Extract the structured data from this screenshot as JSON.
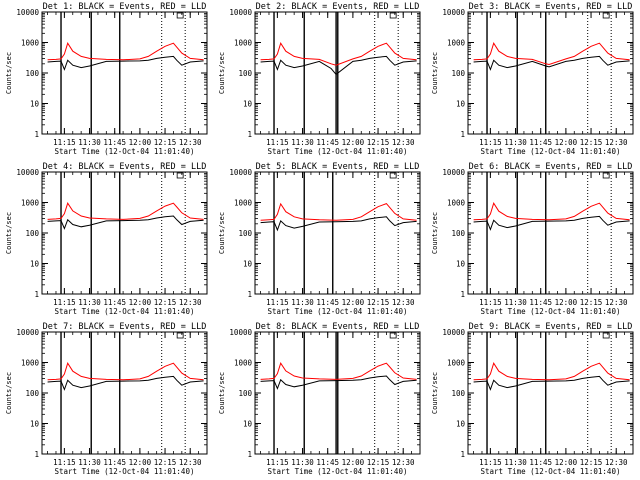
{
  "colors": {
    "events": "#000000",
    "lld": "#ff0000",
    "background": "#ffffff"
  },
  "figure": {
    "xlabel": "Start Time (12-Oct-04 11:01:40)",
    "ylabel": "Counts/sec",
    "ylim": [
      1,
      10000
    ],
    "yscale": "log",
    "xrange_utc": [
      "11:01:40",
      "12:40:00"
    ],
    "xticks": [
      "11:15",
      "11:30",
      "11:45",
      "12:00",
      "12:15",
      "12:30"
    ],
    "yticks": [
      "1",
      "10",
      "100",
      "1000",
      "10000"
    ]
  },
  "chart_data": [
    {
      "type": "line",
      "title": "Det 1: BLACK = Events, RED = LLD",
      "x": [
        "11:05",
        "11:10",
        "11:13",
        "11:15",
        "11:17",
        "11:20",
        "11:25",
        "11:30",
        "11:40",
        "11:50",
        "12:00",
        "12:05",
        "12:10",
        "12:15",
        "12:20",
        "12:22",
        "12:25",
        "12:30",
        "12:38"
      ],
      "series": [
        {
          "name": "BLACK = Events",
          "values": [
            230,
            240,
            245,
            130,
            260,
            180,
            150,
            170,
            240,
            245,
            250,
            260,
            300,
            330,
            350,
            260,
            180,
            230,
            250
          ]
        },
        {
          "name": "RED = LLD",
          "values": [
            270,
            280,
            290,
            420,
            950,
            520,
            350,
            300,
            280,
            270,
            290,
            350,
            520,
            750,
            950,
            700,
            450,
            300,
            270
          ]
        }
      ],
      "vlines_solid": [
        "11:13",
        "11:31",
        "11:48"
      ],
      "vlines_dotted": [
        "12:13",
        "12:27"
      ]
    },
    {
      "type": "line",
      "title": "Det 2: BLACK = Events, RED = LLD",
      "x": [
        "11:05",
        "11:10",
        "11:13",
        "11:15",
        "11:17",
        "11:20",
        "11:25",
        "11:30",
        "11:40",
        "11:47",
        "11:50",
        "12:00",
        "12:05",
        "12:10",
        "12:15",
        "12:20",
        "12:22",
        "12:25",
        "12:30",
        "12:38"
      ],
      "series": [
        {
          "name": "BLACK = Events",
          "values": [
            230,
            240,
            245,
            130,
            260,
            180,
            150,
            170,
            240,
            140,
            90,
            240,
            260,
            300,
            330,
            350,
            260,
            180,
            230,
            250
          ]
        },
        {
          "name": "RED = LLD",
          "values": [
            270,
            280,
            290,
            420,
            950,
            520,
            350,
            300,
            280,
            200,
            180,
            290,
            350,
            520,
            750,
            950,
            700,
            450,
            300,
            270
          ]
        }
      ],
      "vlines_solid": [
        "11:13",
        "11:31",
        "11:50",
        "11:51"
      ],
      "vlines_dotted": [
        "12:13",
        "12:27"
      ]
    },
    {
      "type": "line",
      "title": "Det 3: BLACK = Events, RED = LLD",
      "x": [
        "11:05",
        "11:10",
        "11:13",
        "11:15",
        "11:17",
        "11:20",
        "11:25",
        "11:30",
        "11:40",
        "11:48",
        "11:50",
        "12:00",
        "12:05",
        "12:10",
        "12:15",
        "12:20",
        "12:22",
        "12:25",
        "12:30",
        "12:38"
      ],
      "series": [
        {
          "name": "BLACK = Events",
          "values": [
            230,
            240,
            245,
            130,
            260,
            180,
            150,
            170,
            240,
            170,
            160,
            240,
            260,
            300,
            330,
            350,
            260,
            180,
            230,
            250
          ]
        },
        {
          "name": "RED = LLD",
          "values": [
            270,
            280,
            290,
            420,
            950,
            520,
            350,
            300,
            280,
            200,
            190,
            290,
            350,
            520,
            750,
            950,
            700,
            450,
            300,
            270
          ]
        }
      ],
      "vlines_solid": [
        "11:13",
        "11:31",
        "11:48"
      ],
      "vlines_dotted": [
        "12:13",
        "12:27"
      ]
    },
    {
      "type": "line",
      "title": "Det 4: BLACK = Events, RED = LLD",
      "x": [
        "11:05",
        "11:10",
        "11:13",
        "11:15",
        "11:17",
        "11:20",
        "11:25",
        "11:30",
        "11:40",
        "11:50",
        "12:00",
        "12:05",
        "12:10",
        "12:15",
        "12:20",
        "12:22",
        "12:25",
        "12:30",
        "12:38"
      ],
      "series": [
        {
          "name": "BLACK = Events",
          "values": [
            240,
            250,
            255,
            140,
            270,
            190,
            160,
            180,
            250,
            255,
            260,
            270,
            310,
            340,
            360,
            270,
            190,
            240,
            260
          ]
        },
        {
          "name": "RED = LLD",
          "values": [
            280,
            290,
            300,
            430,
            950,
            530,
            360,
            310,
            290,
            280,
            300,
            360,
            530,
            760,
            950,
            710,
            460,
            310,
            280
          ]
        }
      ],
      "vlines_solid": [
        "11:13",
        "11:31",
        "11:48"
      ],
      "vlines_dotted": [
        "12:13",
        "12:27"
      ]
    },
    {
      "type": "line",
      "title": "Det 5: BLACK = Events, RED = LLD",
      "x": [
        "11:05",
        "11:10",
        "11:13",
        "11:15",
        "11:17",
        "11:20",
        "11:25",
        "11:30",
        "11:40",
        "11:50",
        "12:00",
        "12:05",
        "12:10",
        "12:15",
        "12:20",
        "12:22",
        "12:25",
        "12:30",
        "12:38"
      ],
      "series": [
        {
          "name": "BLACK = Events",
          "values": [
            220,
            230,
            235,
            125,
            250,
            175,
            145,
            165,
            230,
            235,
            240,
            250,
            290,
            320,
            340,
            250,
            175,
            220,
            240
          ]
        },
        {
          "name": "RED = LLD",
          "values": [
            260,
            270,
            280,
            410,
            900,
            500,
            340,
            290,
            270,
            260,
            280,
            340,
            500,
            730,
            920,
            680,
            440,
            290,
            260
          ]
        }
      ],
      "vlines_solid": [
        "11:13",
        "11:31",
        "11:48"
      ],
      "vlines_dotted": [
        "12:13",
        "12:27"
      ]
    },
    {
      "type": "line",
      "title": "Det 6: BLACK = Events, RED = LLD",
      "x": [
        "11:05",
        "11:10",
        "11:13",
        "11:15",
        "11:17",
        "11:20",
        "11:25",
        "11:30",
        "11:40",
        "11:50",
        "12:00",
        "12:05",
        "12:10",
        "12:15",
        "12:20",
        "12:22",
        "12:25",
        "12:30",
        "12:38"
      ],
      "series": [
        {
          "name": "BLACK = Events",
          "values": [
            230,
            240,
            245,
            130,
            260,
            180,
            150,
            170,
            240,
            245,
            250,
            260,
            300,
            330,
            350,
            260,
            180,
            230,
            250
          ]
        },
        {
          "name": "RED = LLD",
          "values": [
            270,
            280,
            290,
            420,
            950,
            520,
            350,
            300,
            280,
            270,
            290,
            350,
            520,
            750,
            950,
            700,
            450,
            300,
            270
          ]
        }
      ],
      "vlines_solid": [
        "11:13",
        "11:31",
        "11:48"
      ],
      "vlines_dotted": [
        "12:13",
        "12:27"
      ]
    },
    {
      "type": "line",
      "title": "Det 7: BLACK = Events, RED = LLD",
      "x": [
        "11:05",
        "11:10",
        "11:13",
        "11:15",
        "11:17",
        "11:20",
        "11:25",
        "11:30",
        "11:40",
        "11:50",
        "12:00",
        "12:05",
        "12:10",
        "12:15",
        "12:20",
        "12:22",
        "12:25",
        "12:30",
        "12:38"
      ],
      "series": [
        {
          "name": "BLACK = Events",
          "values": [
            230,
            240,
            245,
            130,
            260,
            180,
            150,
            170,
            240,
            245,
            250,
            260,
            300,
            330,
            350,
            260,
            180,
            230,
            250
          ]
        },
        {
          "name": "RED = LLD",
          "values": [
            270,
            280,
            290,
            420,
            950,
            520,
            350,
            300,
            280,
            270,
            290,
            350,
            520,
            750,
            950,
            700,
            450,
            300,
            270
          ]
        }
      ],
      "vlines_solid": [
        "11:13",
        "11:31",
        "11:48"
      ],
      "vlines_dotted": [
        "12:13",
        "12:27"
      ]
    },
    {
      "type": "line",
      "title": "Det 8: BLACK = Events, RED = LLD",
      "x": [
        "11:05",
        "11:10",
        "11:13",
        "11:15",
        "11:17",
        "11:20",
        "11:25",
        "11:30",
        "11:40",
        "11:50",
        "12:00",
        "12:05",
        "12:10",
        "12:15",
        "12:20",
        "12:22",
        "12:25",
        "12:30",
        "12:38"
      ],
      "series": [
        {
          "name": "BLACK = Events",
          "values": [
            240,
            250,
            255,
            140,
            270,
            190,
            160,
            180,
            250,
            255,
            260,
            270,
            310,
            340,
            360,
            270,
            190,
            240,
            260
          ]
        },
        {
          "name": "RED = LLD",
          "values": [
            280,
            290,
            300,
            430,
            950,
            530,
            360,
            310,
            290,
            280,
            300,
            360,
            530,
            760,
            950,
            710,
            460,
            310,
            280
          ]
        }
      ],
      "vlines_solid": [
        "11:13",
        "11:31",
        "11:50",
        "11:51"
      ],
      "vlines_dotted": [
        "12:13",
        "12:27"
      ]
    },
    {
      "type": "line",
      "title": "Det 9: BLACK = Events, RED = LLD",
      "x": [
        "11:05",
        "11:10",
        "11:13",
        "11:15",
        "11:17",
        "11:20",
        "11:25",
        "11:30",
        "11:40",
        "11:50",
        "12:00",
        "12:05",
        "12:10",
        "12:15",
        "12:20",
        "12:22",
        "12:25",
        "12:30",
        "12:38"
      ],
      "series": [
        {
          "name": "BLACK = Events",
          "values": [
            230,
            240,
            245,
            130,
            260,
            180,
            150,
            170,
            240,
            245,
            250,
            260,
            300,
            330,
            350,
            260,
            180,
            230,
            250
          ]
        },
        {
          "name": "RED = LLD",
          "values": [
            270,
            280,
            290,
            420,
            950,
            520,
            350,
            300,
            280,
            270,
            290,
            350,
            520,
            750,
            950,
            700,
            450,
            300,
            270
          ]
        }
      ],
      "vlines_solid": [
        "11:13",
        "11:31",
        "11:48"
      ],
      "vlines_dotted": [
        "12:13",
        "12:27"
      ]
    }
  ]
}
